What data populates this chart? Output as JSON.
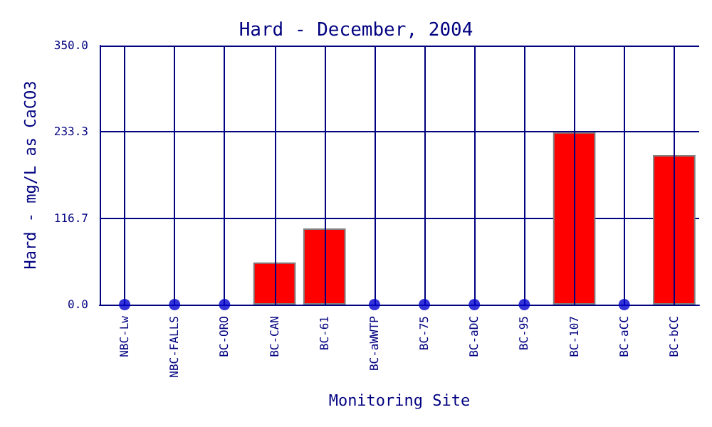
{
  "chart_data": {
    "type": "bar",
    "title": "Hard - December, 2004",
    "xlabel": "Monitoring Site",
    "ylabel": "Hard - mg/L as CaCO3",
    "categories": [
      "NBC-Lw",
      "NBC-FALLS",
      "BC-ORO",
      "BC-CAN",
      "BC-61",
      "BC-aWWTP",
      "BC-75",
      "BC-aDC",
      "BC-95",
      "BC-107",
      "BC-aCC",
      "BC-bCC"
    ],
    "series": [
      {
        "color": "#ff0000",
        "values": [
          null,
          null,
          null,
          57,
          103,
          null,
          null,
          null,
          null,
          233,
          null,
          202
        ]
      },
      {
        "type": "scatter",
        "color": "#0000cc",
        "marker": "circle",
        "values": [
          0,
          0,
          0,
          null,
          null,
          0,
          0,
          0,
          0,
          null,
          0,
          null
        ]
      }
    ],
    "ylim": [
      0,
      350
    ],
    "yticks": [
      {
        "value": 0,
        "label": "0.0"
      },
      116.7,
      233.3,
      {
        "value": 350,
        "label": "350.0"
      }
    ],
    "grid": true
  }
}
